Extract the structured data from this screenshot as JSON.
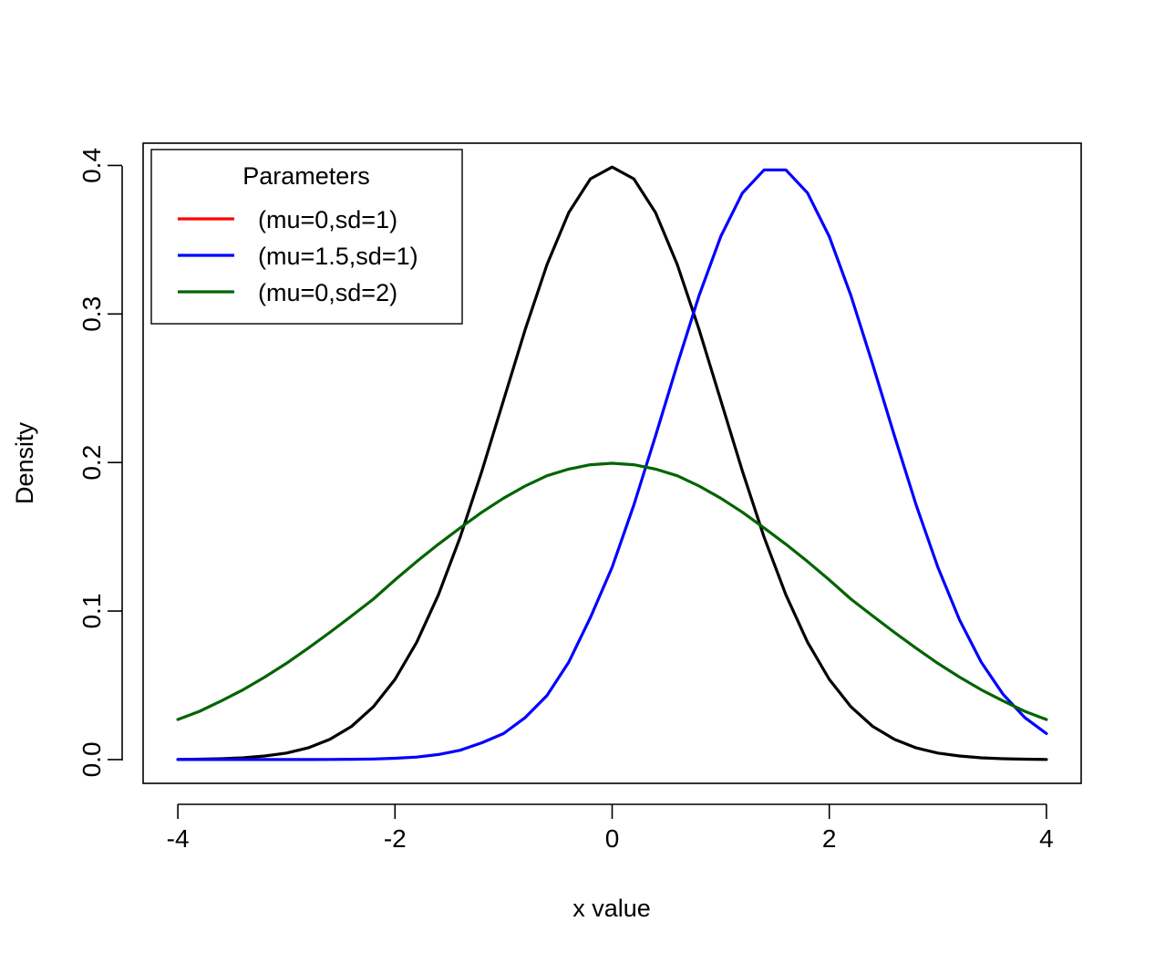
{
  "chart_data": {
    "type": "line",
    "xlabel": "x value",
    "ylabel": "Density",
    "xlim": [
      -4.32,
      4.32
    ],
    "ylim": [
      -0.016,
      0.415
    ],
    "x_ticks": [
      -4,
      -2,
      0,
      2,
      4
    ],
    "x_tick_labels": [
      "-4",
      "-2",
      "0",
      "2",
      "4"
    ],
    "y_ticks": [
      0,
      0.1,
      0.2,
      0.3,
      0.4
    ],
    "y_tick_labels": [
      "0.0",
      "0.1",
      "0.2",
      "0.3",
      "0.4"
    ],
    "x": [
      -4.0,
      -3.8,
      -3.6,
      -3.4,
      -3.2,
      -3.0,
      -2.8,
      -2.6,
      -2.4,
      -2.2,
      -2.0,
      -1.8,
      -1.6,
      -1.4,
      -1.2,
      -1.0,
      -0.8,
      -0.6,
      -0.4,
      -0.2,
      0.0,
      0.2,
      0.4,
      0.6,
      0.8,
      1.0,
      1.2,
      1.4,
      1.6,
      1.8,
      2.0,
      2.2,
      2.4,
      2.6,
      2.8,
      3.0,
      3.2,
      3.4,
      3.6,
      3.8,
      4.0
    ],
    "series": [
      {
        "color": "#000000",
        "values": [
          0.0001,
          0.0003,
          0.0006,
          0.0012,
          0.0024,
          0.0044,
          0.0079,
          0.0136,
          0.0224,
          0.0355,
          0.054,
          0.079,
          0.1109,
          0.1497,
          0.1942,
          0.242,
          0.2897,
          0.3332,
          0.3683,
          0.391,
          0.3989,
          0.391,
          0.3683,
          0.3332,
          0.2897,
          0.242,
          0.1942,
          0.1497,
          0.1109,
          0.079,
          0.054,
          0.0355,
          0.0224,
          0.0136,
          0.0079,
          0.0044,
          0.0024,
          0.0012,
          0.0006,
          0.0003,
          0.0001
        ]
      },
      {
        "color": "#0000ff",
        "values": [
          0.0,
          0.0,
          0.0,
          0.0,
          0.0,
          0.0,
          0.0,
          0.0001,
          0.0002,
          0.0004,
          0.0009,
          0.0017,
          0.0034,
          0.0063,
          0.0113,
          0.0175,
          0.0283,
          0.0431,
          0.0656,
          0.0957,
          0.1295,
          0.1714,
          0.2179,
          0.2661,
          0.3123,
          0.3521,
          0.3814,
          0.397,
          0.397,
          0.3814,
          0.3521,
          0.3123,
          0.2661,
          0.2179,
          0.1714,
          0.1295,
          0.094,
          0.0656,
          0.044,
          0.0283,
          0.0175
        ]
      },
      {
        "color": "#006400",
        "values": [
          0.027,
          0.0325,
          0.0395,
          0.047,
          0.0555,
          0.0648,
          0.075,
          0.0856,
          0.0967,
          0.108,
          0.121,
          0.1333,
          0.145,
          0.156,
          0.1665,
          0.176,
          0.1842,
          0.1911,
          0.1956,
          0.1985,
          0.1995,
          0.1985,
          0.1956,
          0.1911,
          0.1842,
          0.176,
          0.1665,
          0.156,
          0.145,
          0.1333,
          0.121,
          0.108,
          0.0967,
          0.0856,
          0.075,
          0.0648,
          0.0555,
          0.047,
          0.0395,
          0.0325,
          0.027
        ]
      }
    ],
    "legend": {
      "position": "top-left",
      "title": "Parameters",
      "entries": [
        {
          "label": "(mu=0,sd=1)",
          "color": "#ff0000"
        },
        {
          "label": "(mu=1.5,sd=1)",
          "color": "#0000ff"
        },
        {
          "label": "(mu=0,sd=2)",
          "color": "#006400"
        }
      ]
    },
    "grid": false
  }
}
